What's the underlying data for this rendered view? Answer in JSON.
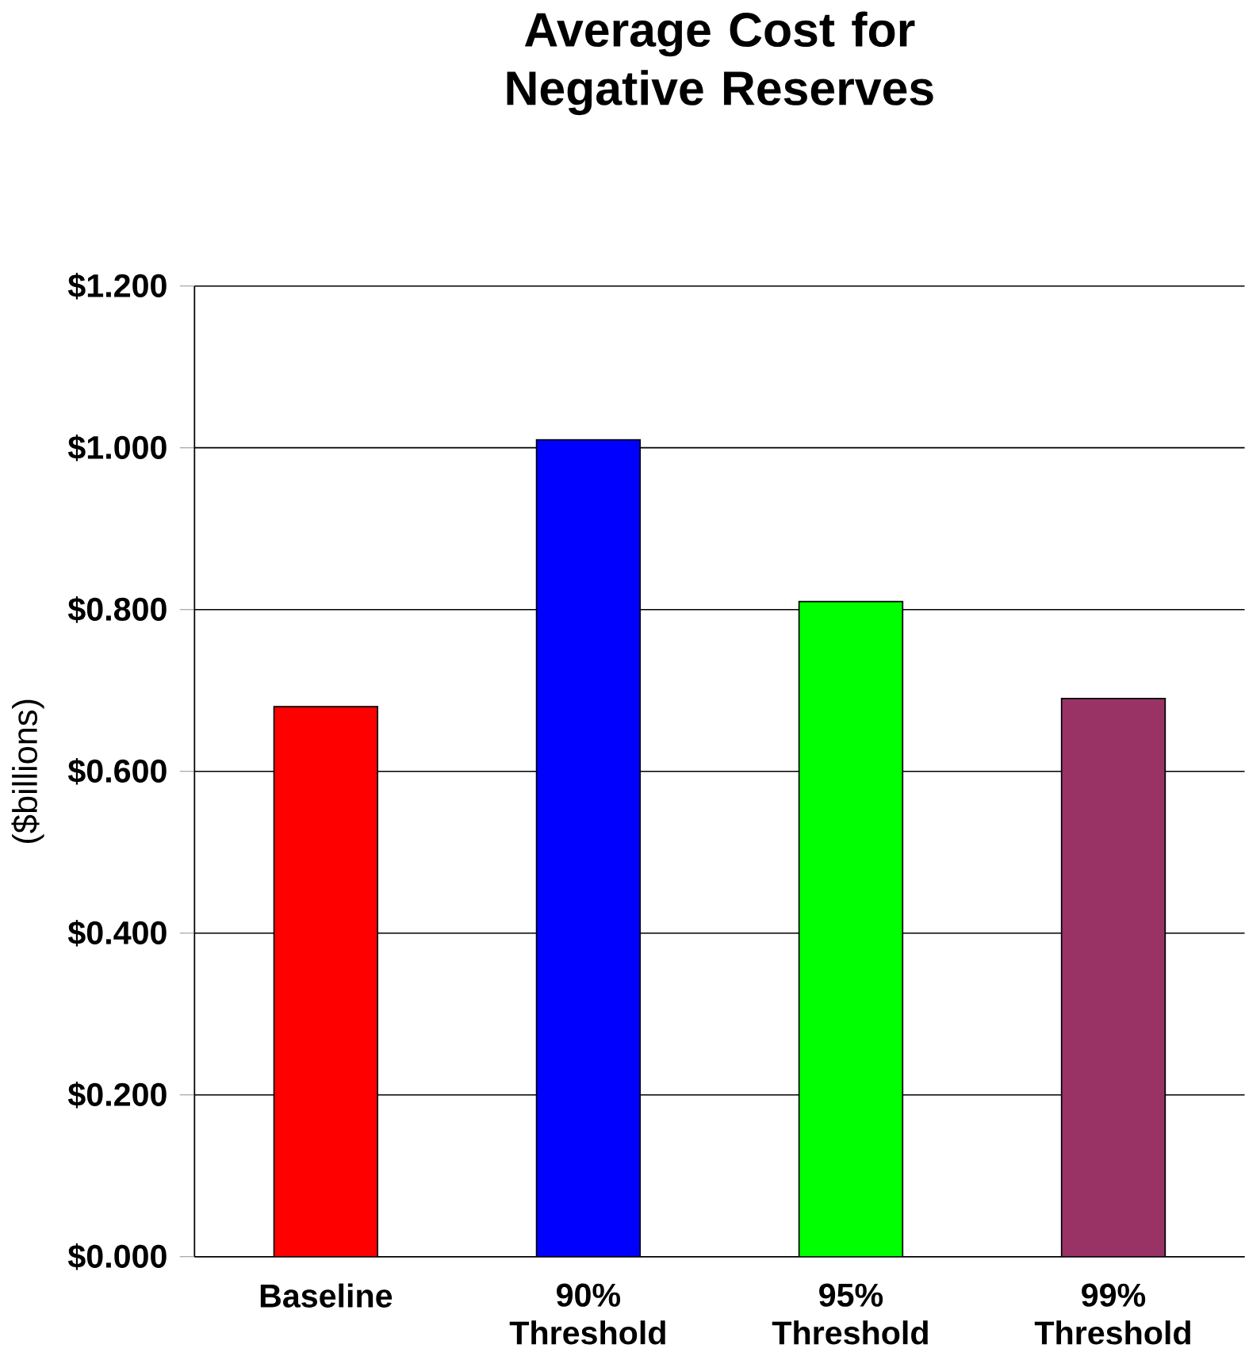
{
  "chart_data": {
    "type": "bar",
    "title": "Average Cost for Negative Reserves",
    "ylabel": "($billions)",
    "categories": [
      "Baseline",
      "90% Threshold",
      "95% Threshold",
      "99% Threshold"
    ],
    "values": [
      0.68,
      1.01,
      0.81,
      0.69
    ],
    "colors": [
      "#ff0000",
      "#0000ff",
      "#00ff00",
      "#993366"
    ],
    "ylim": [
      0,
      1.2
    ],
    "yticks": [
      {
        "value": 0,
        "label": "$0.000"
      },
      {
        "value": 0.2,
        "label": "$0.200"
      },
      {
        "value": 0.4,
        "label": "$0.400"
      },
      {
        "value": 0.6,
        "label": "$0.600"
      },
      {
        "value": 0.8,
        "label": "$0.800"
      },
      {
        "value": 1.0,
        "label": "$1.000"
      },
      {
        "value": 1.2,
        "label": "$1.200"
      }
    ],
    "grid": "y"
  }
}
